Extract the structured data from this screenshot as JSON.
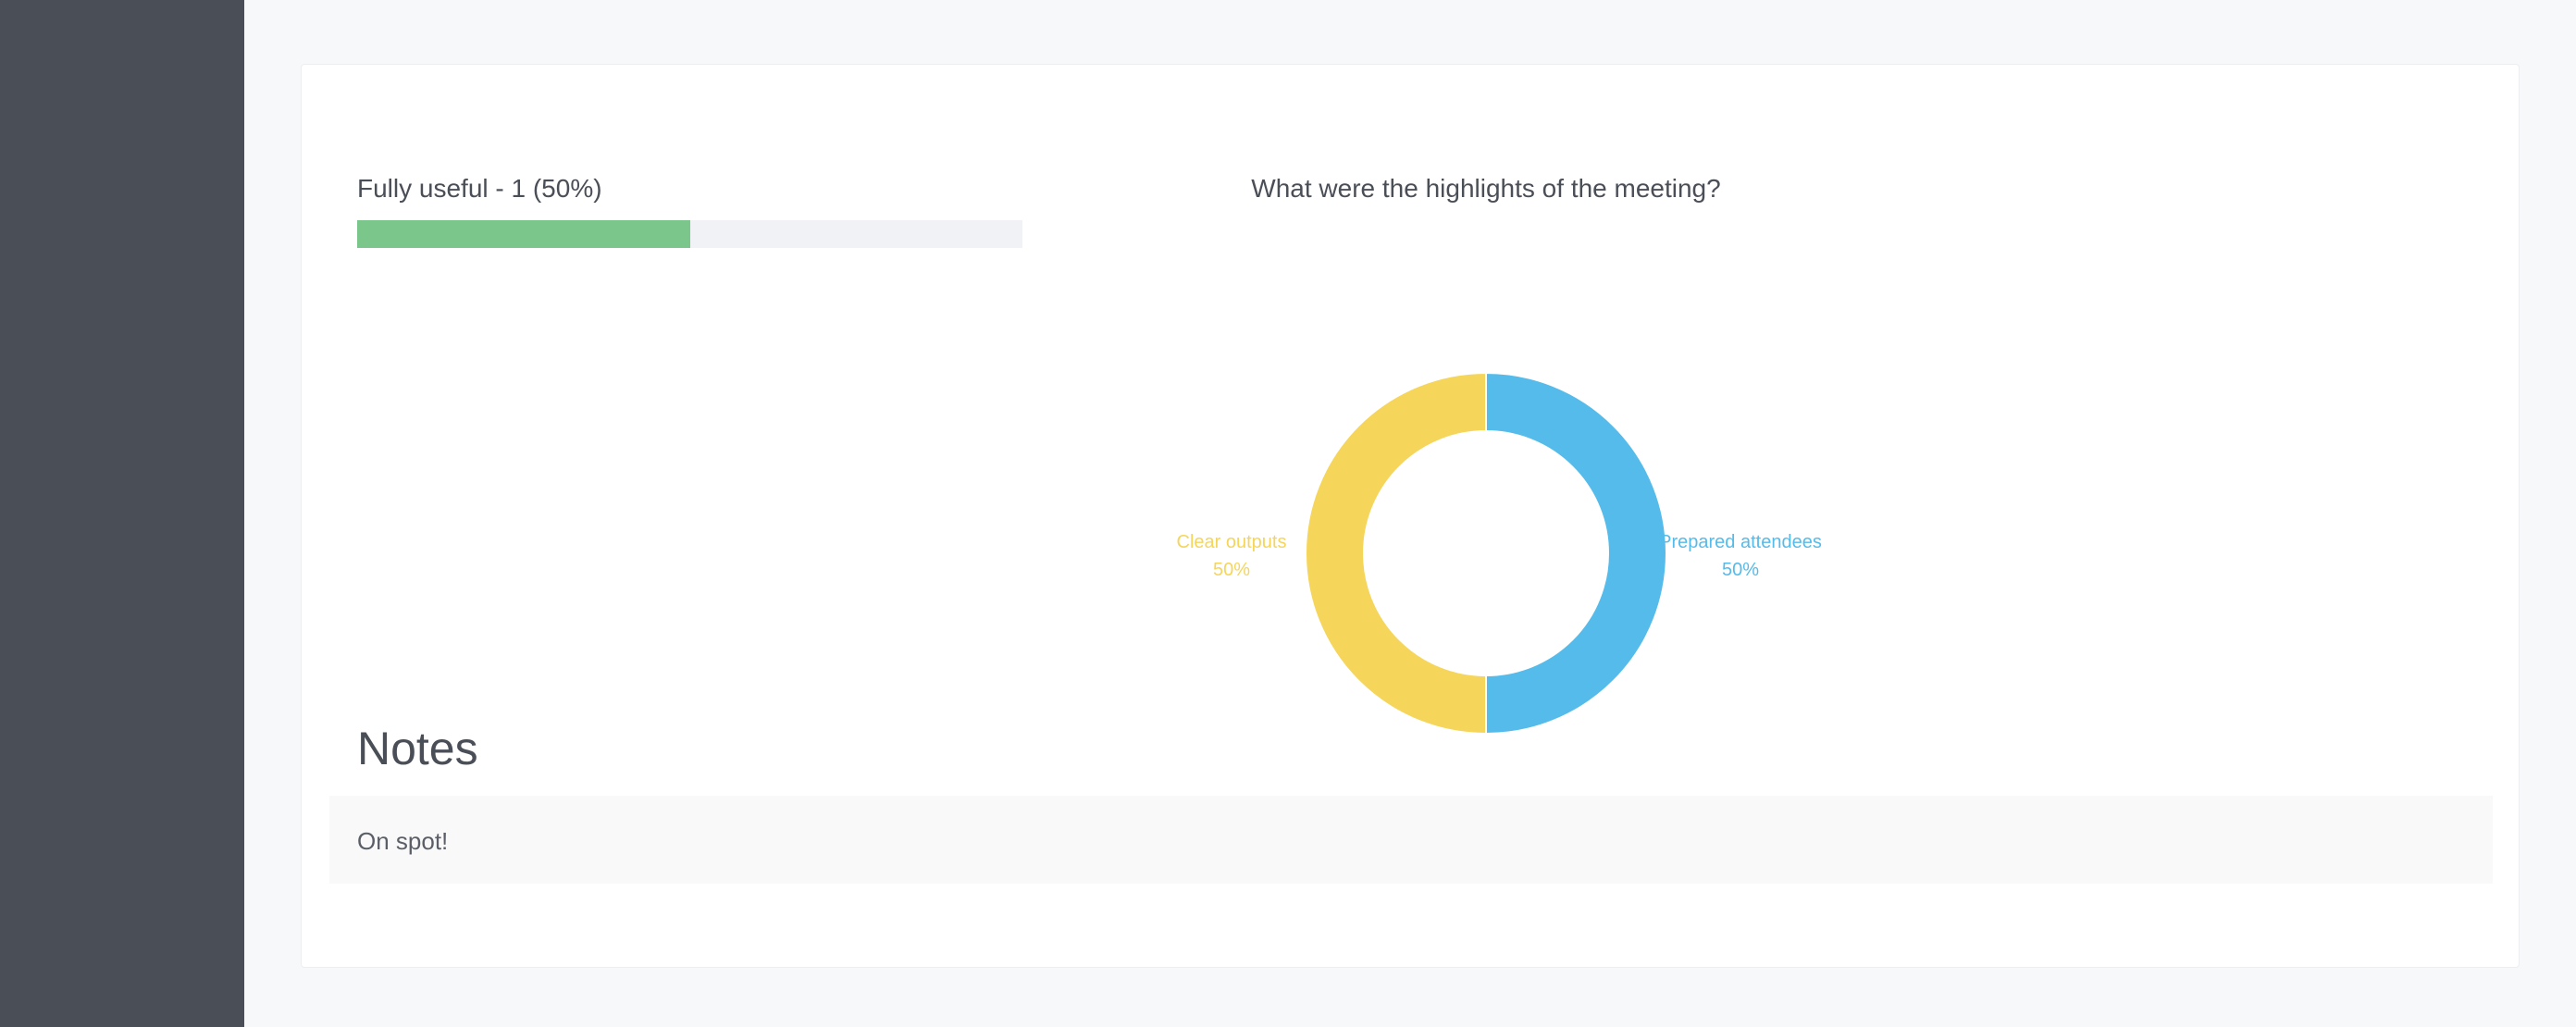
{
  "progress": {
    "label": "Fully useful - 1 (50%)",
    "fraction": 0.5,
    "color": "#7bc68a"
  },
  "chart_data": {
    "type": "pie",
    "title": "What were the highlights of the meeting?",
    "donut": true,
    "categories": [
      "Prepared attendees",
      "Clear outputs"
    ],
    "values": [
      50,
      50
    ],
    "value_labels": [
      "50%",
      "50%"
    ],
    "colors": [
      "#55bbea",
      "#f5d55a"
    ]
  },
  "notes": {
    "heading": "Notes",
    "text": "On spot!"
  }
}
